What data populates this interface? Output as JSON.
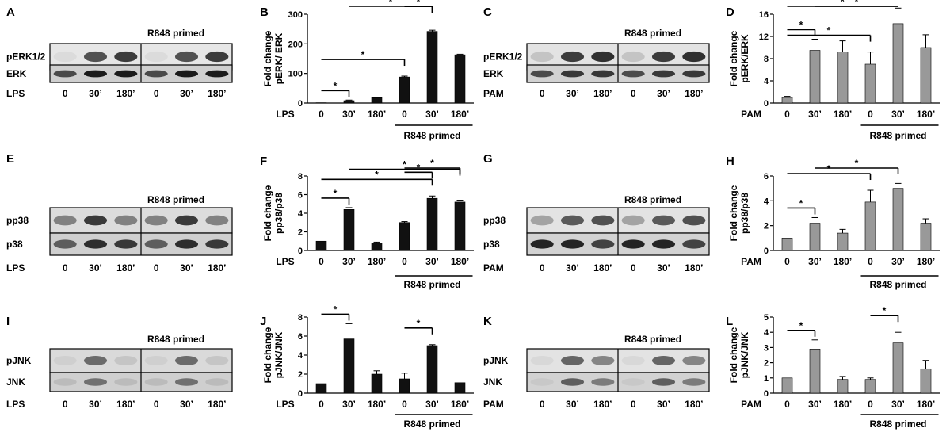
{
  "rows": [
    {
      "blots": [
        {
          "letter": "A",
          "primed_label": "R848 primed",
          "bands": [
            "pERK1/2",
            "ERK"
          ],
          "treatment": "LPS",
          "times": [
            "0",
            "30’",
            "180’",
            "0",
            "30’",
            "180’"
          ],
          "gray": [
            [
              0.05,
              0.7,
              0.8
            ],
            [
              0.7,
              0.95,
              0.95
            ]
          ],
          "bg": [
            "#e6e6e6",
            "#cfcfcf"
          ]
        },
        {
          "letter": "C",
          "primed_label": "R848 primed",
          "bands": [
            "pERK1/2",
            "ERK"
          ],
          "treatment": "PAM",
          "times": [
            "0",
            "30’",
            "180’",
            "0",
            "30’",
            "180’"
          ],
          "gray": [
            [
              0.15,
              0.8,
              0.85
            ],
            [
              0.7,
              0.8,
              0.8
            ]
          ],
          "bg": [
            "#e3e3e3",
            "#d2d2d2"
          ]
        }
      ],
      "charts": [
        {
          "letter": "B",
          "ylabel": "Fold change pERK/ ERK",
          "treatment": "LPS",
          "primed_label": "R848 primed",
          "ticks": [
            "0",
            "30’",
            "180’",
            "0",
            "30’",
            "180’"
          ],
          "fill": "#111111"
        },
        {
          "letter": "D",
          "ylabel": "Fold change pERK/ERK",
          "treatment": "PAM",
          "primed_label": "R848 primed",
          "ticks": [
            "0",
            "30’",
            "180’",
            "0",
            "30’",
            "180’"
          ],
          "fill": "#999999"
        }
      ]
    },
    {
      "blots": [
        {
          "letter": "E",
          "primed_label": "R848 primed",
          "bands": [
            "pp38",
            "p38"
          ],
          "treatment": "LPS",
          "times": [
            "0",
            "30’",
            "180’",
            "0",
            "30’",
            "180’"
          ],
          "gray": [
            [
              0.45,
              0.8,
              0.45
            ],
            [
              0.6,
              0.85,
              0.8
            ]
          ],
          "bg": [
            "#dcdcdc",
            "#cfcfcf"
          ]
        },
        {
          "letter": "G",
          "primed_label": "R848 primed",
          "bands": [
            "pp38",
            "p38"
          ],
          "treatment": "PAM",
          "times": [
            "0",
            "30’",
            "180’",
            "0",
            "30’",
            "180’"
          ],
          "gray": [
            [
              0.3,
              0.65,
              0.7
            ],
            [
              0.9,
              0.9,
              0.75
            ]
          ],
          "bg": [
            "#e3e3e3",
            "#d2d2d2"
          ]
        }
      ],
      "charts": [
        {
          "letter": "F",
          "ylabel": "Fold change pp38/p38",
          "treatment": "LPS",
          "primed_label": "R848 primed",
          "ticks": [
            "0",
            "30’",
            "180’",
            "0",
            "30’",
            "180’"
          ],
          "fill": "#111111"
        },
        {
          "letter": "H",
          "ylabel": "Fold change pp38/p38",
          "treatment": "PAM",
          "primed_label": "R848 primed",
          "ticks": [
            "0",
            "30’",
            "180’",
            "0",
            "30’",
            "180’"
          ],
          "fill": "#999999"
        }
      ]
    },
    {
      "blots": [
        {
          "letter": "I",
          "primed_label": "R848 primed",
          "bands": [
            "pJNK",
            "JNK"
          ],
          "treatment": "LPS",
          "times": [
            "0",
            "30’",
            "180’",
            "0",
            "30’",
            "180’"
          ],
          "gray": [
            [
              0.02,
              0.55,
              0.1
            ],
            [
              0.1,
              0.5,
              0.1
            ]
          ],
          "bg": [
            "#dadada",
            "#cfcfcf"
          ]
        },
        {
          "letter": "K",
          "primed_label": "R848 primed",
          "bands": [
            "pJNK",
            "JNK"
          ],
          "treatment": "PAM",
          "times": [
            "0",
            "30’",
            "180’",
            "0",
            "30’",
            "180’"
          ],
          "gray": [
            [
              0.05,
              0.6,
              0.45
            ],
            [
              0.05,
              0.6,
              0.45
            ]
          ],
          "bg": [
            "#e3e3e3",
            "#d2d2d2"
          ]
        }
      ],
      "charts": [
        {
          "letter": "J",
          "ylabel": "Fold change pJNK/JNK",
          "treatment": "LPS",
          "primed_label": "R848 primed",
          "ticks": [
            "0",
            "30’",
            "180’",
            "0",
            "30’",
            "180’"
          ],
          "fill": "#111111"
        },
        {
          "letter": "L",
          "ylabel": "Fold change pJNK/JNK",
          "treatment": "PAM",
          "primed_label": "R848 primed",
          "ticks": [
            "0",
            "30’",
            "180’",
            "0",
            "30’",
            "180’"
          ],
          "fill": "#999999"
        }
      ]
    }
  ],
  "chart_data": [
    {
      "panel": "B",
      "type": "bar",
      "ylabel": "Fold change pERK/ ERK",
      "categories": [
        "0",
        "30’",
        "180’",
        "0",
        "30’",
        "180’"
      ],
      "values": [
        1,
        8,
        18,
        88,
        242,
        163
      ],
      "errors": [
        0,
        2,
        2,
        3,
        4,
        2
      ],
      "ylim": [
        0,
        300
      ],
      "yticks": [
        0,
        100,
        200,
        300
      ],
      "xlabel": "LPS",
      "group_label": "R848 primed",
      "significance": [
        [
          0,
          1
        ],
        [
          0,
          3
        ],
        [
          3,
          4
        ],
        [
          1,
          4
        ]
      ]
    },
    {
      "panel": "D",
      "type": "bar",
      "ylabel": "Fold change pERK/ERK",
      "categories": [
        "0",
        "30’",
        "180’",
        "0",
        "30’",
        "180’"
      ],
      "values": [
        1,
        9.5,
        9.2,
        7,
        14.3,
        10
      ],
      "errors": [
        0.2,
        2,
        2,
        2.2,
        2.8,
        2.3
      ],
      "ylim": [
        0,
        16
      ],
      "yticks": [
        0,
        4,
        8,
        12,
        16
      ],
      "xlabel": "PAM",
      "group_label": "R848 primed",
      "significance": [
        [
          0,
          1
        ],
        [
          0,
          3
        ],
        [
          0,
          4
        ],
        [
          1,
          4
        ]
      ]
    },
    {
      "panel": "F",
      "type": "bar",
      "ylabel": "Fold change pp38/p38",
      "categories": [
        "0",
        "30’",
        "180’",
        "0",
        "30’",
        "180’"
      ],
      "values": [
        1,
        4.4,
        0.8,
        3,
        5.6,
        5.2
      ],
      "errors": [
        0,
        0.2,
        0.1,
        0.1,
        0.25,
        0.2
      ],
      "ylim": [
        0,
        8
      ],
      "yticks": [
        0,
        2,
        4,
        6,
        8
      ],
      "xlabel": "LPS",
      "group_label": "R848 primed",
      "significance": [
        [
          0,
          1
        ],
        [
          0,
          4
        ],
        [
          3,
          4
        ],
        [
          1,
          5
        ],
        [
          3,
          5
        ]
      ]
    },
    {
      "panel": "H",
      "type": "bar",
      "ylabel": "Fold change pp38/p38",
      "categories": [
        "0",
        "30’",
        "180’",
        "0",
        "30’",
        "180’"
      ],
      "values": [
        1,
        2.2,
        1.4,
        3.9,
        5,
        2.2
      ],
      "errors": [
        0,
        0.45,
        0.3,
        0.95,
        0.4,
        0.35
      ],
      "ylim": [
        0,
        6
      ],
      "yticks": [
        0,
        2,
        4,
        6
      ],
      "xlabel": "PAM",
      "group_label": "R848 primed",
      "significance": [
        [
          0,
          1
        ],
        [
          0,
          3
        ],
        [
          1,
          4
        ]
      ]
    },
    {
      "panel": "J",
      "type": "bar",
      "ylabel": "Fold change pJNK/JNK",
      "categories": [
        "0",
        "30’",
        "180’",
        "0",
        "30’",
        "180’"
      ],
      "values": [
        1,
        5.7,
        2,
        1.5,
        5,
        1.1
      ],
      "errors": [
        0,
        1.6,
        0.35,
        0.6,
        0.1,
        0
      ],
      "ylim": [
        0,
        8
      ],
      "yticks": [
        0,
        2,
        4,
        6,
        8
      ],
      "xlabel": "LPS",
      "group_label": "R848 primed",
      "significance": [
        [
          0,
          1
        ],
        [
          3,
          4
        ]
      ]
    },
    {
      "panel": "L",
      "type": "bar",
      "ylabel": "Fold change pJNK/JNK",
      "categories": [
        "0",
        "30’",
        "180’",
        "0",
        "30’",
        "180’"
      ],
      "values": [
        1,
        2.9,
        0.9,
        0.9,
        3.3,
        1.6
      ],
      "errors": [
        0,
        0.6,
        0.2,
        0.1,
        0.7,
        0.55
      ],
      "ylim": [
        0,
        5
      ],
      "yticks": [
        0,
        1,
        2,
        3,
        4,
        5
      ],
      "xlabel": "PAM",
      "group_label": "R848 primed",
      "significance": [
        [
          0,
          1
        ],
        [
          3,
          4
        ]
      ]
    }
  ]
}
